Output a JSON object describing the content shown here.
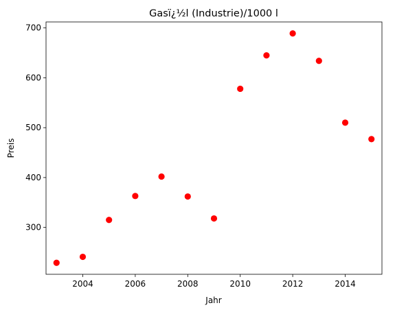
{
  "chart_data": {
    "type": "scatter",
    "title": "Gasï¿½l (Industrie)/1000 l",
    "xlabel": "Jahr",
    "ylabel": "Preis",
    "x": [
      2003,
      2004,
      2005,
      2006,
      2007,
      2008,
      2009,
      2010,
      2011,
      2012,
      2013,
      2014,
      2015
    ],
    "y": [
      229,
      241,
      315,
      363,
      402,
      362,
      318,
      578,
      645,
      689,
      634,
      510,
      477
    ],
    "xlim": [
      2002.6,
      2015.4
    ],
    "ylim": [
      206,
      712
    ],
    "xticks": [
      2004,
      2006,
      2008,
      2010,
      2012,
      2014
    ],
    "yticks": [
      300,
      400,
      500,
      600,
      700
    ],
    "marker_color": "#ff0000",
    "grid": false,
    "legend": false
  }
}
